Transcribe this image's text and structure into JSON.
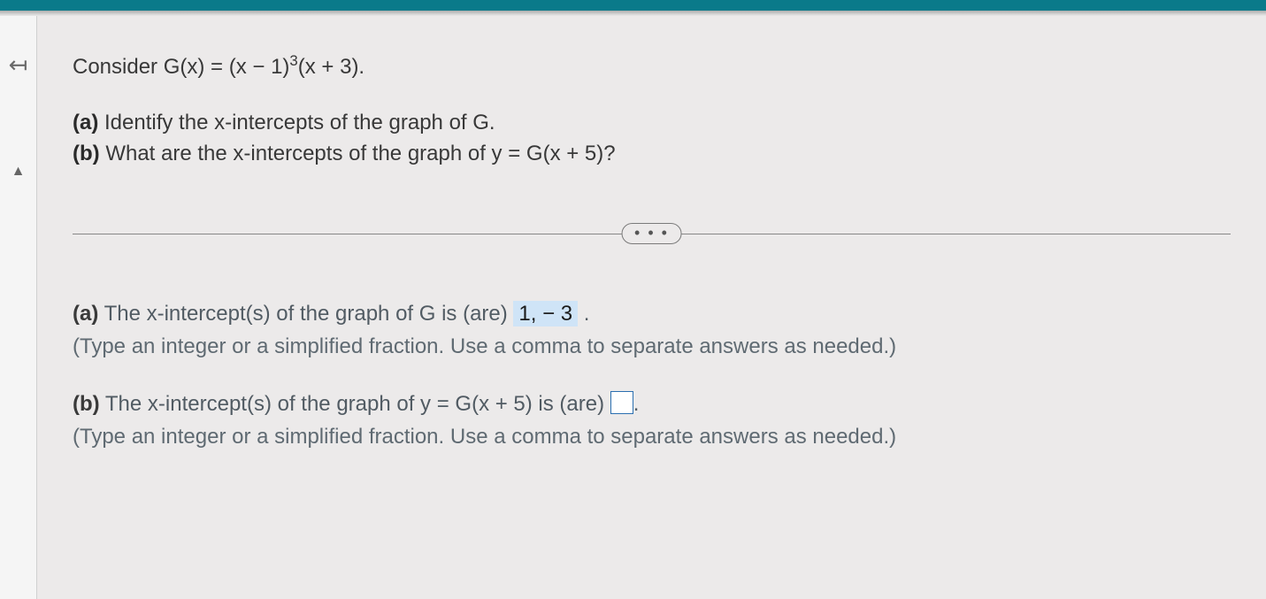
{
  "colors": {
    "top_bar": "#0a7a8a",
    "page_bg": "#eceaea",
    "rail_bg": "#f5f5f5",
    "text_primary": "#383838",
    "text_muted": "#5f6a72",
    "highlight_bg": "#cfe4f7",
    "box_border": "#2b6fb0",
    "divider": "#888888"
  },
  "question": {
    "stem_prefix": "Consider G(x) = (x − 1)",
    "stem_exp": "3",
    "stem_suffix": "(x + 3).",
    "part_a_label": "(a)",
    "part_a_text": " Identify the x-intercepts of the graph of G.",
    "part_b_label": "(b)",
    "part_b_text": " What are the x-intercepts of the graph of y = G(x + 5)?"
  },
  "divider": {
    "dots": "• • •"
  },
  "answers": {
    "a": {
      "label": "(a)",
      "lead": " The x-intercept(s) of the graph of G is (are)  ",
      "value": "1, − 3",
      "trail": " .",
      "hint": "(Type an integer or a simplified fraction. Use a comma to separate answers as needed.)"
    },
    "b": {
      "label": "(b)",
      "lead": " The x-intercept(s) of the graph of y = G(x + 5) is (are) ",
      "trail": ".",
      "hint": "(Type an integer or a simplified fraction. Use a comma to separate answers as needed.)"
    }
  }
}
